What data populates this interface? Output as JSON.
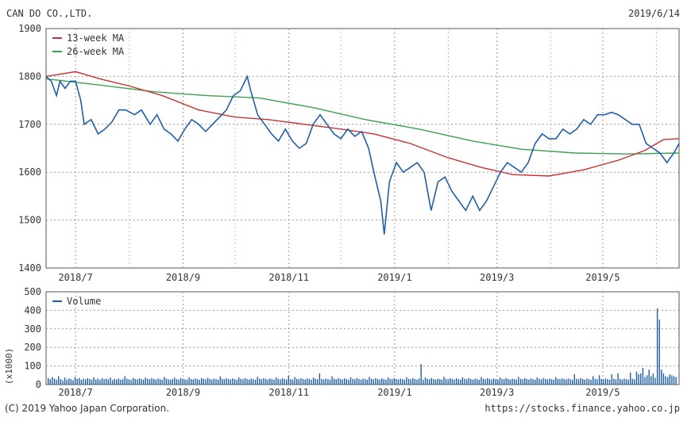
{
  "header": {
    "company": "CAN DO CO.,LTD.",
    "date": "2019/6/14"
  },
  "footer": {
    "copyright": "(C) 2019 Yahoo Japan Corporation.",
    "url": "https://stocks.finance.yahoo.co.jp"
  },
  "chart_data": [
    {
      "type": "line",
      "ylim": [
        1400,
        1900
      ],
      "yticks": [
        1400,
        1500,
        1600,
        1700,
        1800,
        1900
      ],
      "grid": true,
      "legend_position": "top-left",
      "x_tick_labels": [
        "2018/7",
        "2018/9",
        "2018/11",
        "2019/1",
        "2019/3",
        "2019/5"
      ],
      "x_tick_dates": [
        "2018-07-01",
        "2018-09-01",
        "2018-11-01",
        "2019-01-01",
        "2019-03-01",
        "2019-05-01"
      ],
      "x_range": [
        "2018-06-14",
        "2019-06-14"
      ],
      "series": [
        {
          "name": "",
          "color": "#1f5faa",
          "points": [
            [
              "2018-06-14",
              1800
            ],
            [
              "2018-06-17",
              1790
            ],
            [
              "2018-06-20",
              1760
            ],
            [
              "2018-06-22",
              1790
            ],
            [
              "2018-06-25",
              1775
            ],
            [
              "2018-06-28",
              1790
            ],
            [
              "2018-07-01",
              1790
            ],
            [
              "2018-07-04",
              1750
            ],
            [
              "2018-07-06",
              1700
            ],
            [
              "2018-07-10",
              1710
            ],
            [
              "2018-07-14",
              1680
            ],
            [
              "2018-07-18",
              1690
            ],
            [
              "2018-07-22",
              1705
            ],
            [
              "2018-07-26",
              1730
            ],
            [
              "2018-07-30",
              1730
            ],
            [
              "2018-08-04",
              1720
            ],
            [
              "2018-08-08",
              1730
            ],
            [
              "2018-08-13",
              1700
            ],
            [
              "2018-08-17",
              1720
            ],
            [
              "2018-08-21",
              1690
            ],
            [
              "2018-08-25",
              1680
            ],
            [
              "2018-08-29",
              1665
            ],
            [
              "2018-09-02",
              1690
            ],
            [
              "2018-09-06",
              1710
            ],
            [
              "2018-09-10",
              1700
            ],
            [
              "2018-09-14",
              1685
            ],
            [
              "2018-09-18",
              1700
            ],
            [
              "2018-09-22",
              1715
            ],
            [
              "2018-09-26",
              1730
            ],
            [
              "2018-09-30",
              1760
            ],
            [
              "2018-10-04",
              1770
            ],
            [
              "2018-10-08",
              1800
            ],
            [
              "2018-10-10",
              1770
            ],
            [
              "2018-10-14",
              1720
            ],
            [
              "2018-10-18",
              1700
            ],
            [
              "2018-10-22",
              1680
            ],
            [
              "2018-10-26",
              1665
            ],
            [
              "2018-10-30",
              1690
            ],
            [
              "2018-11-03",
              1665
            ],
            [
              "2018-11-07",
              1650
            ],
            [
              "2018-11-11",
              1660
            ],
            [
              "2018-11-15",
              1700
            ],
            [
              "2018-11-19",
              1720
            ],
            [
              "2018-11-23",
              1700
            ],
            [
              "2018-11-27",
              1680
            ],
            [
              "2018-12-01",
              1670
            ],
            [
              "2018-12-05",
              1690
            ],
            [
              "2018-12-09",
              1675
            ],
            [
              "2018-12-13",
              1685
            ],
            [
              "2018-12-17",
              1650
            ],
            [
              "2018-12-20",
              1600
            ],
            [
              "2018-12-24",
              1540
            ],
            [
              "2018-12-26",
              1470
            ],
            [
              "2018-12-29",
              1580
            ],
            [
              "2019-01-02",
              1620
            ],
            [
              "2019-01-06",
              1600
            ],
            [
              "2019-01-10",
              1610
            ],
            [
              "2019-01-14",
              1620
            ],
            [
              "2019-01-18",
              1600
            ],
            [
              "2019-01-22",
              1520
            ],
            [
              "2019-01-26",
              1580
            ],
            [
              "2019-01-30",
              1590
            ],
            [
              "2019-02-03",
              1560
            ],
            [
              "2019-02-07",
              1540
            ],
            [
              "2019-02-11",
              1520
            ],
            [
              "2019-02-15",
              1550
            ],
            [
              "2019-02-19",
              1520
            ],
            [
              "2019-02-23",
              1540
            ],
            [
              "2019-02-27",
              1570
            ],
            [
              "2019-03-03",
              1600
            ],
            [
              "2019-03-07",
              1620
            ],
            [
              "2019-03-11",
              1610
            ],
            [
              "2019-03-15",
              1600
            ],
            [
              "2019-03-19",
              1620
            ],
            [
              "2019-03-23",
              1660
            ],
            [
              "2019-03-27",
              1680
            ],
            [
              "2019-03-31",
              1670
            ],
            [
              "2019-04-04",
              1670
            ],
            [
              "2019-04-08",
              1690
            ],
            [
              "2019-04-12",
              1680
            ],
            [
              "2019-04-16",
              1690
            ],
            [
              "2019-04-20",
              1710
            ],
            [
              "2019-04-24",
              1700
            ],
            [
              "2019-04-28",
              1720
            ],
            [
              "2019-05-02",
              1720
            ],
            [
              "2019-05-06",
              1725
            ],
            [
              "2019-05-10",
              1720
            ],
            [
              "2019-05-14",
              1710
            ],
            [
              "2019-05-18",
              1700
            ],
            [
              "2019-05-22",
              1700
            ],
            [
              "2019-05-26",
              1660
            ],
            [
              "2019-05-30",
              1650
            ],
            [
              "2019-06-03",
              1640
            ],
            [
              "2019-06-07",
              1620
            ],
            [
              "2019-06-11",
              1640
            ],
            [
              "2019-06-14",
              1660
            ]
          ]
        },
        {
          "name": "13-week MA",
          "color": "#c83232",
          "points": [
            [
              "2018-06-14",
              1800
            ],
            [
              "2018-07-01",
              1810
            ],
            [
              "2018-07-15",
              1795
            ],
            [
              "2018-08-01",
              1780
            ],
            [
              "2018-08-20",
              1760
            ],
            [
              "2018-09-10",
              1730
            ],
            [
              "2018-10-01",
              1715
            ],
            [
              "2018-10-20",
              1710
            ],
            [
              "2018-11-10",
              1700
            ],
            [
              "2018-12-01",
              1690
            ],
            [
              "2018-12-20",
              1680
            ],
            [
              "2019-01-10",
              1660
            ],
            [
              "2019-02-01",
              1630
            ],
            [
              "2019-02-20",
              1610
            ],
            [
              "2019-03-10",
              1595
            ],
            [
              "2019-03-31",
              1592
            ],
            [
              "2019-04-20",
              1605
            ],
            [
              "2019-05-10",
              1625
            ],
            [
              "2019-05-25",
              1645
            ],
            [
              "2019-06-05",
              1668
            ],
            [
              "2019-06-14",
              1670
            ]
          ]
        },
        {
          "name": "26-week MA",
          "color": "#3ca050",
          "points": [
            [
              "2018-06-14",
              1795
            ],
            [
              "2018-07-15",
              1782
            ],
            [
              "2018-08-15",
              1768
            ],
            [
              "2018-09-15",
              1760
            ],
            [
              "2018-10-15",
              1755
            ],
            [
              "2018-11-15",
              1735
            ],
            [
              "2018-12-15",
              1710
            ],
            [
              "2019-01-15",
              1690
            ],
            [
              "2019-02-15",
              1665
            ],
            [
              "2019-03-15",
              1648
            ],
            [
              "2019-04-15",
              1640
            ],
            [
              "2019-05-15",
              1638
            ],
            [
              "2019-06-14",
              1640
            ]
          ]
        }
      ]
    },
    {
      "type": "bar",
      "ylabel": "(x1000)",
      "ylim": [
        0,
        500
      ],
      "yticks": [
        0,
        100,
        200,
        300,
        400,
        500
      ],
      "grid": true,
      "legend_position": "top-left",
      "x_tick_labels": [
        "2018/7",
        "2018/9",
        "2018/11",
        "2019/1",
        "2019/3",
        "2019/5"
      ],
      "x_range": [
        "2018-06-14",
        "2019-06-14"
      ],
      "series": [
        {
          "name": "Volume",
          "color": "#1f5faa",
          "values": [
            35,
            28,
            40,
            32,
            26,
            45,
            30,
            22,
            38,
            27,
            33,
            29,
            24,
            41,
            30,
            36,
            25,
            31,
            28,
            34,
            30,
            26,
            39,
            27,
            32,
            25,
            35,
            29,
            31,
            28,
            37,
            24,
            30,
            27,
            33,
            26,
            29,
            45,
            31,
            28,
            25,
            36,
            30,
            27,
            34,
            29,
            26,
            38,
            31,
            28,
            35,
            30,
            27,
            33,
            29,
            25,
            41,
            32,
            28,
            26,
            30,
            37,
            29,
            27,
            34,
            31,
            28,
            26,
            39,
            30,
            27,
            33,
            29,
            25,
            35,
            31,
            28,
            36,
            30,
            27,
            32,
            29,
            26,
            44,
            31,
            28,
            34,
            30,
            27,
            33,
            29,
            26,
            38,
            31,
            28,
            35,
            30,
            27,
            32,
            29,
            26,
            42,
            31,
            28,
            34,
            30,
            27,
            33,
            29,
            26,
            39,
            31,
            28,
            35,
            30,
            27,
            48,
            29,
            26,
            40,
            31,
            28,
            34,
            30,
            27,
            33,
            29,
            26,
            38,
            31,
            28,
            60,
            30,
            27,
            32,
            29,
            26,
            45,
            31,
            28,
            34,
            30,
            27,
            33,
            29,
            26,
            39,
            31,
            28,
            35,
            30,
            27,
            32,
            29,
            26,
            41,
            31,
            28,
            34,
            30,
            27,
            33,
            29,
            26,
            38,
            31,
            28,
            35,
            30,
            27,
            32,
            29,
            26,
            40,
            31,
            28,
            34,
            30,
            27,
            33,
            110,
            26,
            38,
            31,
            28,
            35,
            30,
            27,
            32,
            29,
            26,
            42,
            31,
            28,
            34,
            30,
            27,
            33,
            29,
            26,
            39,
            31,
            28,
            35,
            30,
            27,
            32,
            29,
            26,
            40,
            31,
            28,
            34,
            30,
            27,
            33,
            29,
            26,
            38,
            31,
            28,
            35,
            30,
            27,
            32,
            29,
            26,
            41,
            31,
            28,
            34,
            30,
            27,
            33,
            29,
            26,
            39,
            31,
            28,
            35,
            30,
            27,
            32,
            29,
            26,
            40,
            31,
            28,
            34,
            30,
            27,
            33,
            29,
            26,
            55,
            31,
            28,
            35,
            30,
            27,
            32,
            29,
            26,
            45,
            31,
            28,
            50,
            30,
            27,
            33,
            29,
            26,
            55,
            31,
            28,
            60,
            30,
            27,
            32,
            29,
            26,
            65,
            31,
            28,
            70,
            55,
            60,
            90,
            40,
            50,
            80,
            45,
            60,
            35,
            410,
            350,
            80,
            60,
            45,
            40,
            55,
            50,
            45,
            40
          ]
        }
      ]
    }
  ]
}
